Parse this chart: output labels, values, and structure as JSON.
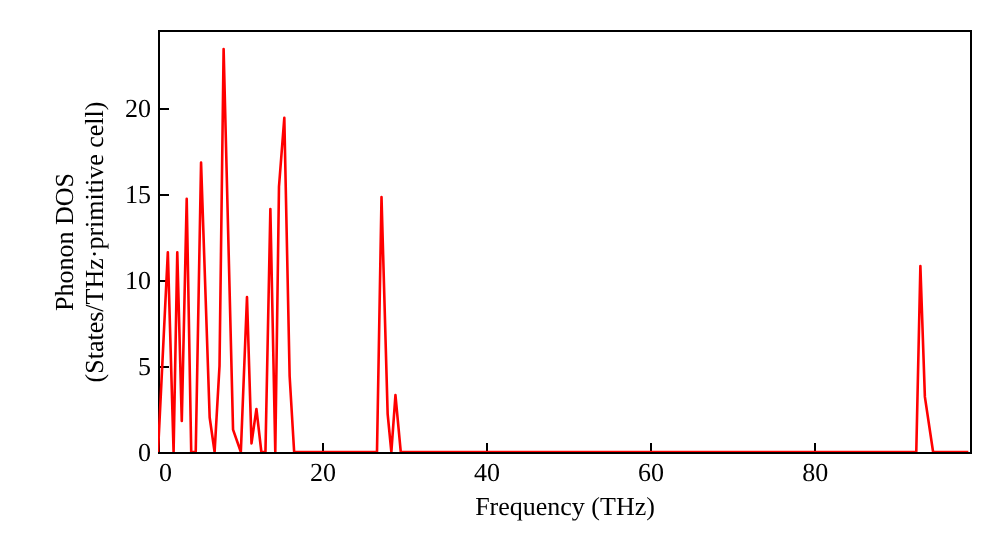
{
  "chart_data": {
    "type": "line",
    "xlabel": "Frequency (THz)",
    "ylabel": "Phonon DOS\n(States/THz·primitive cell)",
    "xlim": [
      0,
      99
    ],
    "ylim": [
      0,
      24.5
    ],
    "xticks": [
      0,
      20,
      40,
      60,
      80
    ],
    "yticks": [
      0,
      5,
      10,
      15,
      20
    ],
    "grid": false,
    "marker": "none",
    "line_style": "solid",
    "series": [
      {
        "color": "#ff0000",
        "x": [
          0,
          1.2,
          1.9,
          2.35,
          2.9,
          3.5,
          4.05,
          4.6,
          5.25,
          6.3,
          6.9,
          7.5,
          8.0,
          9.15,
          10.1,
          10.85,
          11.4,
          12.0,
          12.6,
          13.1,
          13.7,
          14.3,
          14.75,
          15.4,
          16.05,
          16.6,
          26.7,
          27.25,
          28.0,
          28.45,
          28.95,
          29.6,
          92.45,
          92.95,
          93.5,
          94.5,
          98.8
        ],
        "values": [
          0,
          11.6,
          0,
          11.6,
          1.8,
          14.7,
          0,
          0,
          16.8,
          2.0,
          0,
          5,
          23.4,
          1.3,
          0,
          9.0,
          0.5,
          2.5,
          0,
          0,
          14.1,
          0,
          15.4,
          19.4,
          4.4,
          0,
          0,
          14.8,
          2.2,
          0,
          3.3,
          0,
          0,
          10.8,
          3.2,
          0,
          0
        ]
      }
    ]
  }
}
